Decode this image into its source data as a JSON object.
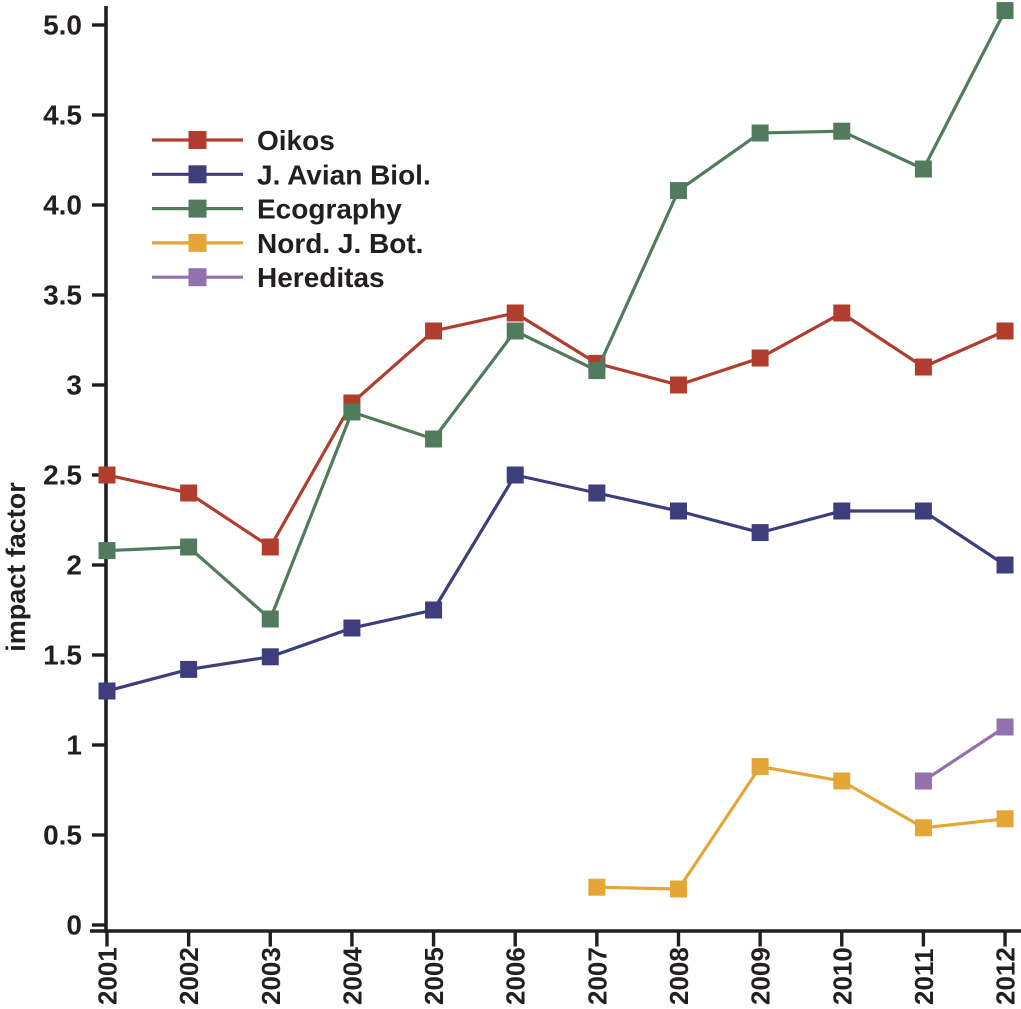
{
  "chart_data": {
    "type": "line",
    "title": "",
    "xlabel": "",
    "ylabel": "impact factor",
    "x": [
      2001,
      2002,
      2003,
      2004,
      2005,
      2006,
      2007,
      2008,
      2009,
      2010,
      2011,
      2012
    ],
    "x_tick_labels": [
      "2001",
      "2002",
      "2003",
      "2004",
      "2005",
      "2006",
      "2007",
      "2008",
      "2009",
      "2010",
      "2011",
      "2012"
    ],
    "y_ticks": [
      {
        "value": 0,
        "label": "0"
      },
      {
        "value": 0.5,
        "label": "0.5"
      },
      {
        "value": 1,
        "label": "1"
      },
      {
        "value": 1.5,
        "label": "1.5"
      },
      {
        "value": 2,
        "label": "2"
      },
      {
        "value": 2.5,
        "label": "2.5"
      },
      {
        "value": 3,
        "label": "3"
      },
      {
        "value": 3.5,
        "label": "3.5"
      },
      {
        "value": 4,
        "label": "4.0"
      },
      {
        "value": 4.5,
        "label": "4.5"
      },
      {
        "value": 5,
        "label": "5.0"
      }
    ],
    "ylim": [
      0,
      5.15
    ],
    "grid": false,
    "legend_position": "upper-left-inside",
    "marker": "filled-square",
    "axis_color": "#231f20",
    "series": [
      {
        "name": "Oikos",
        "color": "#b03d2d",
        "values": [
          2.5,
          2.4,
          2.1,
          2.9,
          3.3,
          3.4,
          3.12,
          3.0,
          3.15,
          3.4,
          3.1,
          3.3
        ]
      },
      {
        "name": "J. Avian Biol.",
        "color": "#3f3e7c",
        "values": [
          1.3,
          1.42,
          1.49,
          1.65,
          1.75,
          2.5,
          2.4,
          2.3,
          2.18,
          2.3,
          2.3,
          2.0
        ]
      },
      {
        "name": "Ecography",
        "color": "#527b5d",
        "values": [
          2.08,
          2.1,
          1.7,
          2.85,
          2.7,
          3.3,
          3.08,
          4.08,
          4.4,
          4.41,
          4.2,
          5.08
        ]
      },
      {
        "name": "Nord. J. Bot.",
        "color": "#e3a637",
        "values": [
          null,
          null,
          null,
          null,
          null,
          null,
          0.21,
          0.2,
          0.88,
          0.8,
          0.54,
          0.59
        ]
      },
      {
        "name": "Hereditas",
        "color": "#9271ae",
        "values": [
          null,
          null,
          null,
          null,
          null,
          null,
          null,
          null,
          null,
          null,
          0.8,
          1.1
        ]
      }
    ]
  }
}
